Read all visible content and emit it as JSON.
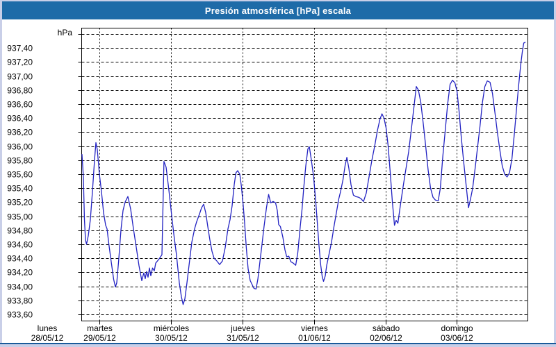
{
  "window": {
    "title": "Presión atmosférica [hPa] escala"
  },
  "colors": {
    "title_bar": "#1E6BA8",
    "frame": "#C9CFE8",
    "separator": "#1A5A9A",
    "plot_background": "#FFFFFF",
    "grid": "#000000",
    "text": "#000000",
    "line": "#2222C2"
  },
  "chart_data": {
    "type": "line",
    "title": "Presión atmosférica [hPa] escala",
    "y_unit_label": "hPa",
    "grid": "dashed",
    "y_axis": {
      "min": 933.6,
      "max": 937.6,
      "step": 0.2,
      "tick_labels": [
        "937,40",
        "937,20",
        "937,00",
        "936,80",
        "936,60",
        "936,40",
        "936,20",
        "936,00",
        "935,80",
        "935,60",
        "935,40",
        "935,20",
        "935,00",
        "934,80",
        "934,60",
        "934,40",
        "934,20",
        "934,00",
        "933,80",
        "933,60"
      ]
    },
    "x_axis": {
      "unit": "days",
      "days": [
        {
          "name": "lunes",
          "date": "28/05/12",
          "t": 0
        },
        {
          "name": "martes",
          "date": "29/05/12",
          "t": 1
        },
        {
          "name": "miércoles",
          "date": "30/05/12",
          "t": 2
        },
        {
          "name": "jueves",
          "date": "31/05/12",
          "t": 3
        },
        {
          "name": "viernes",
          "date": "01/06/12",
          "t": 4
        },
        {
          "name": "sábado",
          "date": "02/06/12",
          "t": 5
        },
        {
          "name": "domingo",
          "date": "03/06/12",
          "t": 6
        }
      ]
    },
    "series": [
      {
        "name": "Presión atmosférica",
        "color": "#2222C2",
        "points": [
          [
            0.756,
            935.88
          ],
          [
            0.776,
            935.55
          ],
          [
            0.79,
            934.95
          ],
          [
            0.805,
            934.66
          ],
          [
            0.82,
            934.6
          ],
          [
            0.844,
            934.72
          ],
          [
            0.873,
            934.95
          ],
          [
            0.902,
            935.35
          ],
          [
            0.931,
            935.8
          ],
          [
            0.951,
            936.05
          ],
          [
            0.97,
            935.95
          ],
          [
            0.999,
            935.6
          ],
          [
            1.029,
            935.35
          ],
          [
            1.058,
            935.05
          ],
          [
            1.087,
            934.87
          ],
          [
            1.106,
            934.82
          ],
          [
            1.135,
            934.58
          ],
          [
            1.165,
            934.35
          ],
          [
            1.199,
            934.1
          ],
          [
            1.223,
            933.99
          ],
          [
            1.242,
            934.05
          ],
          [
            1.272,
            934.4
          ],
          [
            1.301,
            934.8
          ],
          [
            1.33,
            935.08
          ],
          [
            1.359,
            935.2
          ],
          [
            1.398,
            935.28
          ],
          [
            1.437,
            935.1
          ],
          [
            1.476,
            934.82
          ],
          [
            1.515,
            934.56
          ],
          [
            1.553,
            934.3
          ],
          [
            1.592,
            934.08
          ],
          [
            1.621,
            934.19
          ],
          [
            1.641,
            934.11
          ],
          [
            1.66,
            934.21
          ],
          [
            1.68,
            934.13
          ],
          [
            1.699,
            934.26
          ],
          [
            1.719,
            934.15
          ],
          [
            1.743,
            934.26
          ],
          [
            1.767,
            934.22
          ],
          [
            1.787,
            934.33
          ],
          [
            1.835,
            934.39
          ],
          [
            1.874,
            934.45
          ],
          [
            1.903,
            935.78
          ],
          [
            1.933,
            935.7
          ],
          [
            1.971,
            935.38
          ],
          [
            2.001,
            935.1
          ],
          [
            2.04,
            934.75
          ],
          [
            2.078,
            934.45
          ],
          [
            2.117,
            934.05
          ],
          [
            2.147,
            933.85
          ],
          [
            2.171,
            933.74
          ],
          [
            2.195,
            933.82
          ],
          [
            2.224,
            934.05
          ],
          [
            2.254,
            934.3
          ],
          [
            2.292,
            934.63
          ],
          [
            2.331,
            934.82
          ],
          [
            2.36,
            934.92
          ],
          [
            2.399,
            935.03
          ],
          [
            2.429,
            935.12
          ],
          [
            2.458,
            935.17
          ],
          [
            2.487,
            935.05
          ],
          [
            2.516,
            934.85
          ],
          [
            2.545,
            934.66
          ],
          [
            2.574,
            934.5
          ],
          [
            2.604,
            934.4
          ],
          [
            2.642,
            934.36
          ],
          [
            2.681,
            934.31
          ],
          [
            2.72,
            934.36
          ],
          [
            2.759,
            934.55
          ],
          [
            2.798,
            934.82
          ],
          [
            2.827,
            934.95
          ],
          [
            2.856,
            935.15
          ],
          [
            2.885,
            935.45
          ],
          [
            2.91,
            935.62
          ],
          [
            2.934,
            935.65
          ],
          [
            2.963,
            935.6
          ],
          [
            2.987,
            935.42
          ],
          [
            3.012,
            935.15
          ],
          [
            3.031,
            934.9
          ],
          [
            3.055,
            934.55
          ],
          [
            3.08,
            934.25
          ],
          [
            3.109,
            934.08
          ],
          [
            3.138,
            934.02
          ],
          [
            3.162,
            933.97
          ],
          [
            3.191,
            933.96
          ],
          [
            3.216,
            934.1
          ],
          [
            3.245,
            934.35
          ],
          [
            3.274,
            934.6
          ],
          [
            3.303,
            934.85
          ],
          [
            3.337,
            935.12
          ],
          [
            3.367,
            935.31
          ],
          [
            3.396,
            935.19
          ],
          [
            3.43,
            935.21
          ],
          [
            3.464,
            935.19
          ],
          [
            3.488,
            935.08
          ],
          [
            3.508,
            934.88
          ],
          [
            3.532,
            934.85
          ],
          [
            3.566,
            934.7
          ],
          [
            3.595,
            934.52
          ],
          [
            3.62,
            934.42
          ],
          [
            3.649,
            934.43
          ],
          [
            3.678,
            934.35
          ],
          [
            3.712,
            934.33
          ],
          [
            3.746,
            934.3
          ],
          [
            3.775,
            934.48
          ],
          [
            3.809,
            934.85
          ],
          [
            3.834,
            935.1
          ],
          [
            3.858,
            935.4
          ],
          [
            3.887,
            935.72
          ],
          [
            3.916,
            935.96
          ],
          [
            3.936,
            935.99
          ],
          [
            3.965,
            935.8
          ],
          [
            3.994,
            935.58
          ],
          [
            4.023,
            935.25
          ],
          [
            4.048,
            934.9
          ],
          [
            4.072,
            934.58
          ],
          [
            4.096,
            934.3
          ],
          [
            4.116,
            934.14
          ],
          [
            4.135,
            934.07
          ],
          [
            4.159,
            934.15
          ],
          [
            4.179,
            934.3
          ],
          [
            4.213,
            934.46
          ],
          [
            4.247,
            934.63
          ],
          [
            4.281,
            934.85
          ],
          [
            4.315,
            935.05
          ],
          [
            4.349,
            935.25
          ],
          [
            4.373,
            935.35
          ],
          [
            4.407,
            935.52
          ],
          [
            4.436,
            935.72
          ],
          [
            4.461,
            935.84
          ],
          [
            4.49,
            935.68
          ],
          [
            4.519,
            935.45
          ],
          [
            4.553,
            935.3
          ],
          [
            4.587,
            935.28
          ],
          [
            4.626,
            935.27
          ],
          [
            4.66,
            935.25
          ],
          [
            4.694,
            935.21
          ],
          [
            4.733,
            935.33
          ],
          [
            4.772,
            935.56
          ],
          [
            4.811,
            935.8
          ],
          [
            4.85,
            936.0
          ],
          [
            4.888,
            936.22
          ],
          [
            4.923,
            936.38
          ],
          [
            4.952,
            936.46
          ],
          [
            4.981,
            936.4
          ],
          [
            5.01,
            936.26
          ],
          [
            5.039,
            936.0
          ],
          [
            5.068,
            935.62
          ],
          [
            5.098,
            935.2
          ],
          [
            5.127,
            934.87
          ],
          [
            5.151,
            934.94
          ],
          [
            5.175,
            934.9
          ],
          [
            5.209,
            935.15
          ],
          [
            5.248,
            935.42
          ],
          [
            5.287,
            935.67
          ],
          [
            5.326,
            935.92
          ],
          [
            5.365,
            936.25
          ],
          [
            5.404,
            936.6
          ],
          [
            5.433,
            936.85
          ],
          [
            5.462,
            936.8
          ],
          [
            5.496,
            936.62
          ],
          [
            5.53,
            936.32
          ],
          [
            5.564,
            936.0
          ],
          [
            5.598,
            935.66
          ],
          [
            5.632,
            935.4
          ],
          [
            5.666,
            935.27
          ],
          [
            5.7,
            935.23
          ],
          [
            5.739,
            935.22
          ],
          [
            5.769,
            935.4
          ],
          [
            5.803,
            935.85
          ],
          [
            5.837,
            936.22
          ],
          [
            5.871,
            936.6
          ],
          [
            5.905,
            936.88
          ],
          [
            5.939,
            936.94
          ],
          [
            5.973,
            936.9
          ],
          [
            6.002,
            936.78
          ],
          [
            6.031,
            936.5
          ],
          [
            6.06,
            936.15
          ],
          [
            6.095,
            935.78
          ],
          [
            6.129,
            935.45
          ],
          [
            6.163,
            935.12
          ],
          [
            6.192,
            935.25
          ],
          [
            6.221,
            935.4
          ],
          [
            6.255,
            935.68
          ],
          [
            6.289,
            935.98
          ],
          [
            6.323,
            936.28
          ],
          [
            6.357,
            936.62
          ],
          [
            6.391,
            936.85
          ],
          [
            6.425,
            936.93
          ],
          [
            6.464,
            936.91
          ],
          [
            6.498,
            936.75
          ],
          [
            6.532,
            936.48
          ],
          [
            6.566,
            936.2
          ],
          [
            6.6,
            935.95
          ],
          [
            6.634,
            935.72
          ],
          [
            6.668,
            935.6
          ],
          [
            6.702,
            935.56
          ],
          [
            6.736,
            935.62
          ],
          [
            6.77,
            935.82
          ],
          [
            6.804,
            936.18
          ],
          [
            6.834,
            936.52
          ],
          [
            6.863,
            936.85
          ],
          [
            6.892,
            937.15
          ],
          [
            6.916,
            937.35
          ],
          [
            6.936,
            937.47
          ],
          [
            6.955,
            937.48
          ]
        ]
      }
    ]
  }
}
